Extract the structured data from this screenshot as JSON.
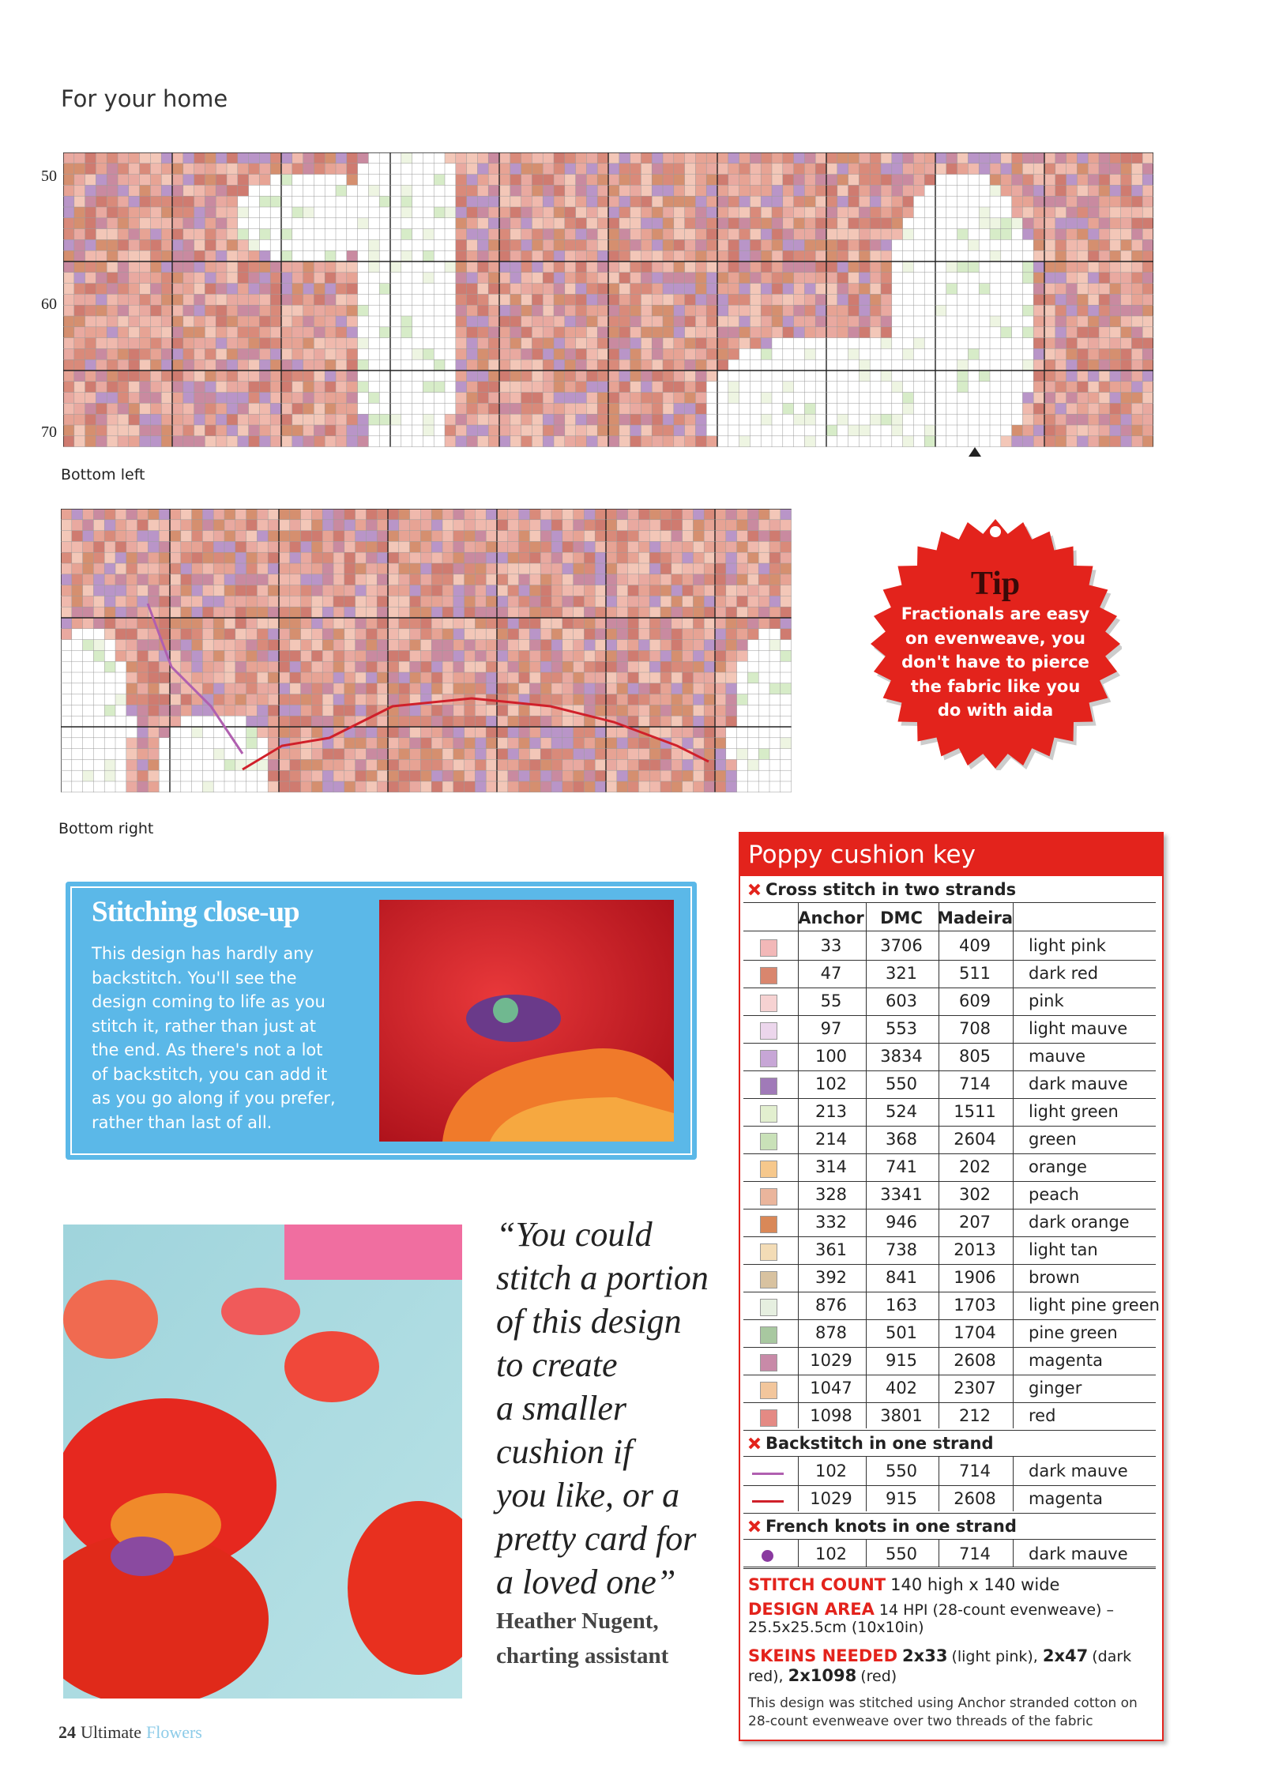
{
  "header": {
    "section": "For your home"
  },
  "charts": [
    {
      "row_labels": [
        50,
        60,
        70
      ]
    },
    {
      "row_labels": []
    }
  ],
  "captions": {
    "bottom_left": "Bottom left",
    "bottom_right": "Bottom right"
  },
  "tip": {
    "title": "Tip",
    "lines": [
      "Fractionals are easy",
      "on evenweave, you",
      "don't have to pierce",
      "the fabric like you",
      "do with aida"
    ]
  },
  "closeup": {
    "title": "Stitching close-up",
    "lines": [
      "This design has hardly any",
      "backstitch. You'll see the",
      "design coming to life as you",
      "stitch it, rather than just at",
      "the end. As there's not a lot",
      "of backstitch, you can add it",
      "as you go along if you prefer,",
      "rather than last of all."
    ]
  },
  "quote": {
    "lines": [
      "“You could",
      "stitch a portion",
      "of this design",
      "to create",
      "a smaller",
      "cushion if",
      "you like, or a",
      "pretty card for",
      "a loved one”"
    ],
    "name": "Heather Nugent,",
    "role": "charting assistant"
  },
  "key": {
    "title": "Poppy cushion key",
    "cross": {
      "heading": "Cross stitch in two strands",
      "columns": [
        "Anchor",
        "DMC",
        "Madeira"
      ],
      "rows": [
        {
          "color": "#f2b8b8",
          "anchor": 33,
          "dmc": 3706,
          "madeira": 409,
          "name": "light pink"
        },
        {
          "color": "#d9866e",
          "anchor": 47,
          "dmc": 321,
          "madeira": 511,
          "name": "dark red"
        },
        {
          "color": "#f6d2d2",
          "anchor": 55,
          "dmc": 603,
          "madeira": 609,
          "name": "pink"
        },
        {
          "color": "#ecd6ec",
          "anchor": 97,
          "dmc": 553,
          "madeira": 708,
          "name": "light mauve"
        },
        {
          "color": "#c7a6d6",
          "anchor": 100,
          "dmc": 3834,
          "madeira": 805,
          "name": "mauve"
        },
        {
          "color": "#a07ab8",
          "anchor": 102,
          "dmc": 550,
          "madeira": 714,
          "name": "dark mauve"
        },
        {
          "color": "#e2efcf",
          "anchor": 213,
          "dmc": 524,
          "madeira": 1511,
          "name": "light green"
        },
        {
          "color": "#c9e1b8",
          "anchor": 214,
          "dmc": 368,
          "madeira": 2604,
          "name": "green"
        },
        {
          "color": "#f6c88c",
          "anchor": 314,
          "dmc": 741,
          "madeira": 202,
          "name": "orange"
        },
        {
          "color": "#eab59c",
          "anchor": 328,
          "dmc": 3341,
          "madeira": 302,
          "name": "peach"
        },
        {
          "color": "#d98858",
          "anchor": 332,
          "dmc": 946,
          "madeira": 207,
          "name": "dark orange"
        },
        {
          "color": "#f3dcb6",
          "anchor": 361,
          "dmc": 738,
          "madeira": 2013,
          "name": "light tan"
        },
        {
          "color": "#d8c2a0",
          "anchor": 392,
          "dmc": 841,
          "madeira": 1906,
          "name": "brown"
        },
        {
          "color": "#e6efe0",
          "anchor": 876,
          "dmc": 163,
          "madeira": 1703,
          "name": "light pine green"
        },
        {
          "color": "#a8c8a0",
          "anchor": 878,
          "dmc": 501,
          "madeira": 1704,
          "name": "pine green"
        },
        {
          "color": "#c88aa8",
          "anchor": 1029,
          "dmc": 915,
          "madeira": 2608,
          "name": "magenta"
        },
        {
          "color": "#f2c69c",
          "anchor": 1047,
          "dmc": 402,
          "madeira": 2307,
          "name": "ginger"
        },
        {
          "color": "#e48a84",
          "anchor": 1098,
          "dmc": 3801,
          "madeira": 212,
          "name": "red"
        }
      ]
    },
    "backstitch": {
      "heading": "Backstitch in one strand",
      "rows": [
        {
          "color": "#b060b0",
          "anchor": 102,
          "dmc": 550,
          "madeira": 714,
          "name": "dark mauve"
        },
        {
          "color": "#d0202a",
          "anchor": 1029,
          "dmc": 915,
          "madeira": 2608,
          "name": "magenta"
        }
      ]
    },
    "french": {
      "heading": "French knots in one strand",
      "rows": [
        {
          "color": "#8a3aa0",
          "anchor": 102,
          "dmc": 550,
          "madeira": 714,
          "name": "dark mauve"
        }
      ]
    },
    "stitch_count": {
      "label": "STITCH COUNT",
      "text": "140 high x 140 wide"
    },
    "design_area": {
      "label": "DESIGN AREA",
      "text": "14 HPI (28-count evenweave) –",
      "text2": "25.5x25.5cm (10x10in)"
    },
    "skeins": {
      "label": "SKEINS NEEDED",
      "items": [
        {
          "amount": "2x33",
          "desc": "(light pink),"
        },
        {
          "amount": "2x47",
          "desc": "(dark red),"
        },
        {
          "amount": "2x1098",
          "desc": "(red)"
        }
      ]
    },
    "note": [
      "This design was stitched using Anchor stranded cotton on",
      "28-count evenweave over two threads of the fabric"
    ]
  },
  "footer": {
    "page": 24,
    "magazine": "Ultimate",
    "section": "Flowers"
  }
}
